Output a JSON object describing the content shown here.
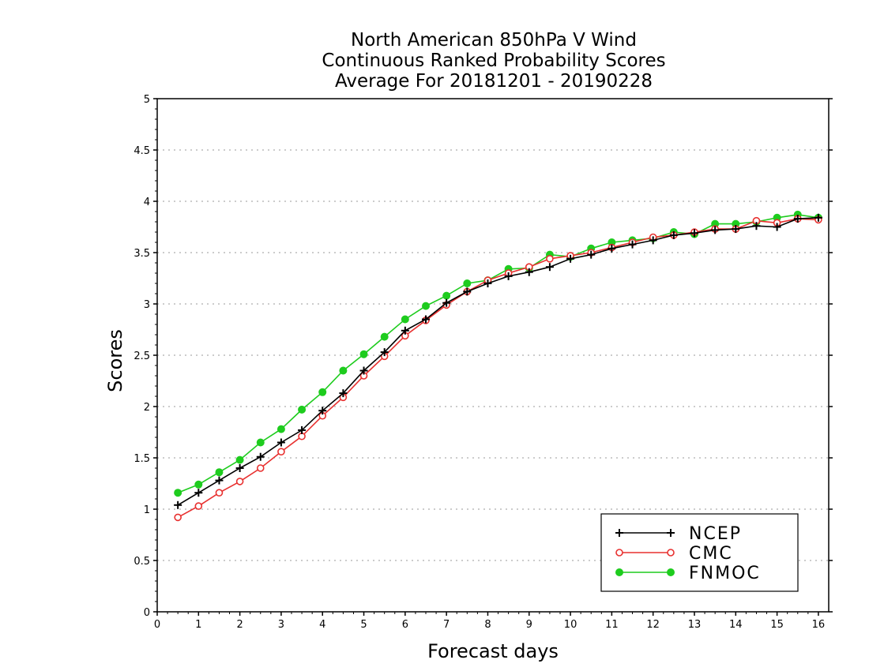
{
  "chart_data": {
    "type": "line",
    "title_lines": [
      "North American 850hPa V Wind",
      "Continuous Ranked Probability Scores",
      "Average For 20181201 - 20190228"
    ],
    "xlabel": "Forecast days",
    "ylabel": "Scores",
    "xlim": [
      0,
      16.25
    ],
    "ylim": [
      0,
      5
    ],
    "x_ticks": [
      "0",
      "1",
      "2",
      "3",
      "4",
      "5",
      "6",
      "7",
      "8",
      "9",
      "10",
      "11",
      "12",
      "13",
      "14",
      "15",
      "16"
    ],
    "y_ticks": [
      "0",
      "0.5",
      "1",
      "1.5",
      "2",
      "2.5",
      "3",
      "3.5",
      "4",
      "4.5",
      "5"
    ],
    "grid": true,
    "legend_position": "bottom-right",
    "x": [
      0.5,
      1,
      1.5,
      2,
      2.5,
      3,
      3.5,
      4,
      4.5,
      5,
      5.5,
      6,
      6.5,
      7,
      7.5,
      8,
      8.5,
      9,
      9.5,
      10,
      10.5,
      11,
      11.5,
      12,
      12.5,
      13,
      13.5,
      14,
      14.5,
      15,
      15.5,
      16
    ],
    "series": [
      {
        "name": "NCEP",
        "color": "#000000",
        "marker": "plus",
        "values": [
          1.04,
          1.16,
          1.28,
          1.4,
          1.51,
          1.65,
          1.77,
          1.96,
          2.13,
          2.35,
          2.53,
          2.74,
          2.85,
          3.01,
          3.12,
          3.2,
          3.27,
          3.31,
          3.36,
          3.44,
          3.48,
          3.54,
          3.58,
          3.62,
          3.67,
          3.69,
          3.72,
          3.73,
          3.76,
          3.75,
          3.83,
          3.84
        ]
      },
      {
        "name": "CMC",
        "color": "#e8302f",
        "marker": "open-circle",
        "values": [
          0.92,
          1.03,
          1.16,
          1.27,
          1.4,
          1.56,
          1.71,
          1.91,
          2.09,
          2.3,
          2.49,
          2.69,
          2.84,
          2.99,
          3.12,
          3.23,
          3.3,
          3.36,
          3.44,
          3.47,
          3.5,
          3.55,
          3.6,
          3.65,
          3.67,
          3.7,
          3.73,
          3.73,
          3.81,
          3.79,
          3.83,
          3.82
        ]
      },
      {
        "name": "FNMOC",
        "color": "#1ecc1e",
        "marker": "filled-circle",
        "values": [
          1.16,
          1.24,
          1.36,
          1.48,
          1.65,
          1.78,
          1.97,
          2.14,
          2.35,
          2.51,
          2.68,
          2.85,
          2.98,
          3.08,
          3.2,
          3.23,
          3.34,
          3.35,
          3.48,
          3.46,
          3.54,
          3.6,
          3.62,
          3.64,
          3.7,
          3.68,
          3.78,
          3.78,
          3.8,
          3.84,
          3.87,
          3.84
        ]
      }
    ]
  }
}
